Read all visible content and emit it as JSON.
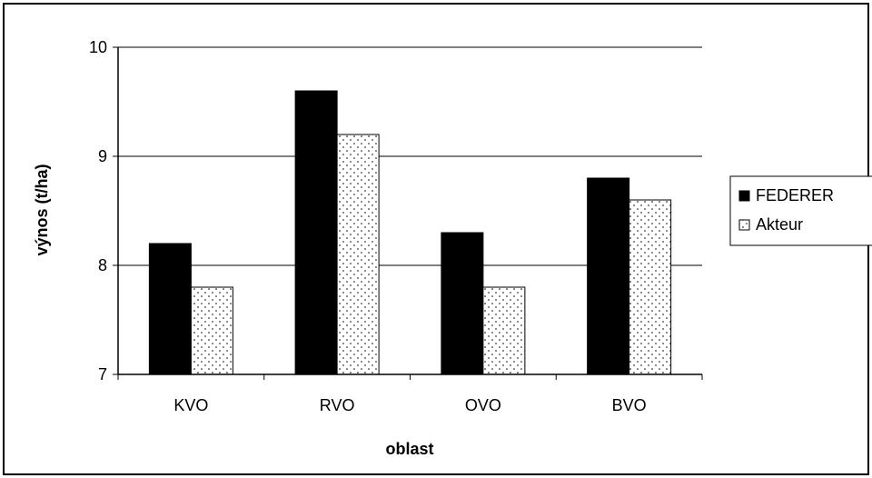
{
  "chart_data": {
    "type": "bar",
    "title": "",
    "xlabel": "oblast",
    "ylabel": "výnos (t/ha)",
    "categories": [
      "KVO",
      "RVO",
      "OVO",
      "BVO"
    ],
    "ylim": [
      7,
      10
    ],
    "yticks": [
      7,
      8,
      9,
      10
    ],
    "grid": true,
    "legend_position": "right",
    "series": [
      {
        "name": "FEDERER",
        "values": [
          8.2,
          9.6,
          8.3,
          8.8
        ],
        "fill": "solid",
        "color": "#000000"
      },
      {
        "name": "Akteur",
        "values": [
          7.8,
          9.2,
          7.8,
          8.6
        ],
        "fill": "dotted",
        "color": "#ffffff"
      }
    ]
  }
}
